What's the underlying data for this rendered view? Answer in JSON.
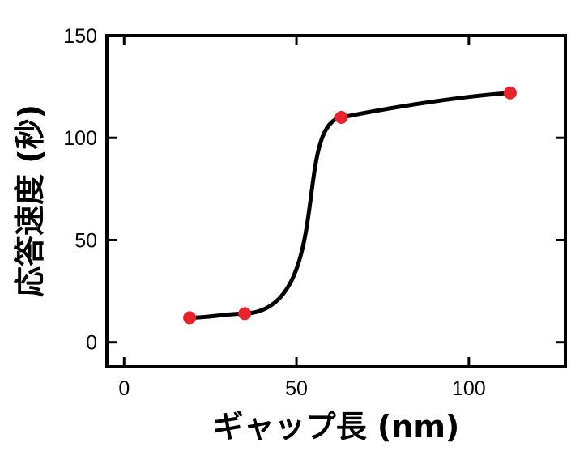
{
  "chart_data": {
    "type": "line",
    "title": "",
    "xlabel": "ギャップ長 (nm)",
    "ylabel": "応答速度 (秒)",
    "xlim": [
      -5,
      128
    ],
    "ylim": [
      -12,
      150
    ],
    "x_ticks": [
      0,
      50,
      100
    ],
    "y_ticks": [
      0,
      50,
      100,
      150
    ],
    "x_tick_labels": [
      "0",
      "50",
      "100"
    ],
    "y_tick_labels": [
      "0",
      "50",
      "100",
      "150"
    ],
    "grid": false,
    "legend": "none",
    "series": [
      {
        "x": [
          19,
          35,
          63,
          112
        ],
        "values": [
          12,
          14,
          110,
          122
        ],
        "marker_color": "#e8232e",
        "line_color": "#000000"
      }
    ]
  }
}
